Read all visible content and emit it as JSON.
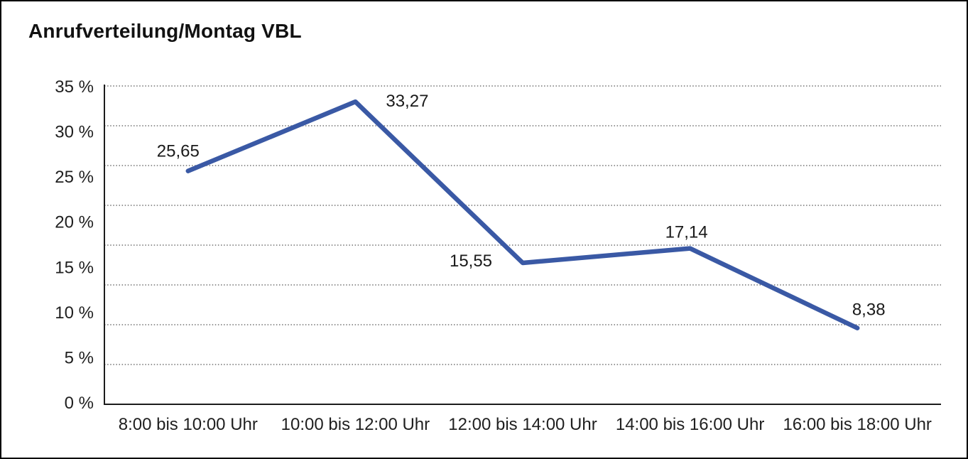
{
  "window": {
    "background_color": "#ffffff",
    "border_color": "#000000"
  },
  "chart_data": {
    "type": "line",
    "title": "Anrufverteilung/Montag VBL",
    "categories": [
      "8:00 bis 10:00 Uhr",
      "10:00 bis 12:00 Uhr",
      "12:00 bis 14:00 Uhr",
      "14:00 bis 16:00 Uhr",
      "16:00 bis 18:00 Uhr"
    ],
    "series": [
      {
        "name": "Anrufverteilung Montag VBL",
        "values": [
          25.65,
          33.27,
          15.55,
          17.14,
          8.38
        ],
        "color": "#3A59A5"
      }
    ],
    "data_labels": [
      "25,65",
      "33,27",
      "15,55",
      "17,14",
      "8,38"
    ],
    "yticks": [
      "35 %",
      "30 %",
      "25 %",
      "20 %",
      "15 %",
      "10 %",
      "5 %",
      "0 %"
    ],
    "ylim": [
      0,
      35
    ],
    "xlabel": "",
    "ylabel": "",
    "grid": "horizontal-dotted",
    "gridline_count": 8,
    "grid_color": "#555555",
    "axis_color": "#1c1c1c",
    "text_color": "#1f1f1f",
    "legend": "none",
    "decimal_separator": ","
  }
}
